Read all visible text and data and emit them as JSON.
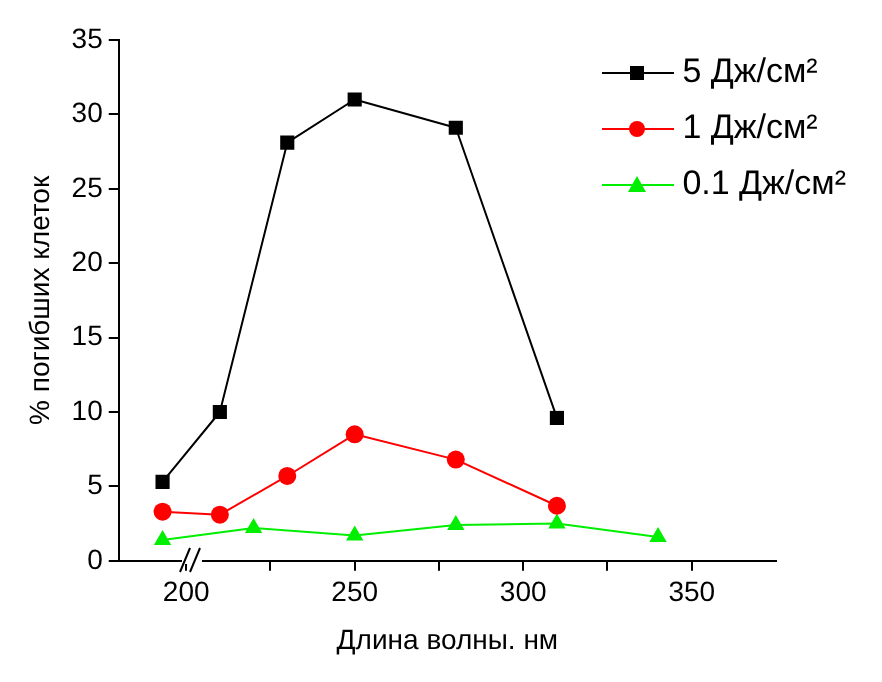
{
  "chart_data": {
    "type": "line",
    "xlabel": "Длина волны. нм",
    "ylabel": "% погибших клеток",
    "xlim": [
      180,
      375
    ],
    "xticks": [
      200,
      {
        "value": 225,
        "label": null
      },
      250,
      {
        "value": 275,
        "label": null
      },
      300,
      {
        "value": 325,
        "label": null
      },
      350
    ],
    "ylim": [
      0,
      35
    ],
    "yticks": [
      0,
      5,
      10,
      15,
      20,
      25,
      30,
      35
    ],
    "grid": false,
    "legend": "top right",
    "line_style": "solid",
    "series": [
      {
        "name": "5 Дж/см²",
        "color": "#000000",
        "marker": "square",
        "x": [
          193,
          210,
          230,
          250,
          280,
          310
        ],
        "values": [
          5.3,
          10.0,
          28.1,
          31.0,
          29.1,
          9.6
        ]
      },
      {
        "name": "1 Дж/см²",
        "color": "#ff0000",
        "marker": "circle",
        "x": [
          193,
          210,
          230,
          250,
          280,
          310
        ],
        "values": [
          3.3,
          3.1,
          5.7,
          8.5,
          6.8,
          3.7
        ]
      },
      {
        "name": "0.1 Дж/см²",
        "color": "#00ee00",
        "marker": "triangle",
        "x": [
          193,
          220,
          250,
          280,
          310,
          340
        ],
        "values": [
          1.4,
          2.2,
          1.7,
          2.4,
          2.5,
          1.6
        ]
      }
    ]
  }
}
